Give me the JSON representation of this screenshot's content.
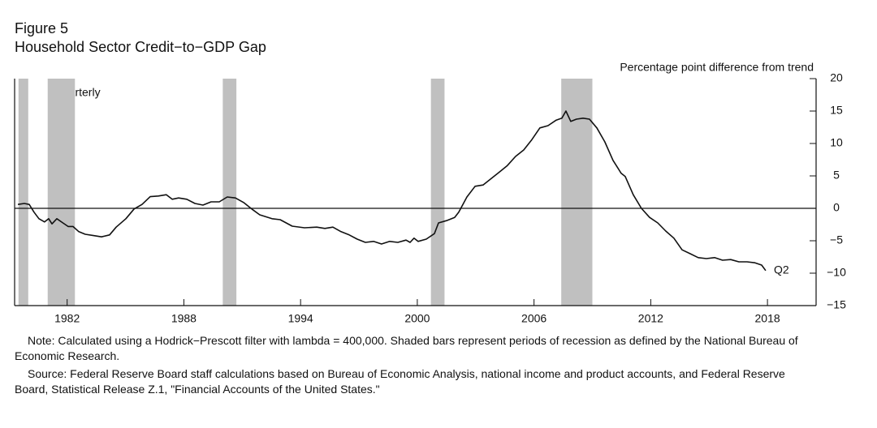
{
  "chart_data": {
    "type": "line",
    "figure_label": "Figure 5",
    "title": "Household Sector Credit−to−GDP Gap",
    "y_axis_label": "Percentage point difference from trend",
    "frequency_label": "Quarterly",
    "end_label": "Q2",
    "color": "#111111",
    "shade_color": "#c0c0c0",
    "zero_line": true,
    "xlim": [
      1979.8,
      2021.0
    ],
    "xticks": [
      {
        "value": 1982.5,
        "label": "1982"
      },
      {
        "value": 1988.5,
        "label": "1988"
      },
      {
        "value": 1994.5,
        "label": "1994"
      },
      {
        "value": 2000.5,
        "label": "2000"
      },
      {
        "value": 2006.5,
        "label": "2006"
      },
      {
        "value": 2012.5,
        "label": "2012"
      },
      {
        "value": 2018.5,
        "label": "2018"
      }
    ],
    "ylim": [
      -15,
      20
    ],
    "yticks": [
      20,
      15,
      10,
      5,
      0,
      {
        "value": -5,
        "label": "−5"
      },
      {
        "value": -10,
        "label": "−10"
      },
      {
        "value": -15,
        "label": "−15"
      }
    ],
    "shaded_periods": [
      [
        1980.0,
        1980.5
      ],
      [
        1981.5,
        1982.9
      ],
      [
        1990.5,
        1991.2
      ],
      [
        2001.2,
        2001.9
      ],
      [
        2007.9,
        2009.5
      ]
    ],
    "x": [
      1979.97,
      1980.3,
      1980.55,
      1980.8,
      1981.05,
      1981.34,
      1981.55,
      1981.72,
      1981.97,
      1982.26,
      1982.55,
      1982.8,
      1983.1,
      1983.43,
      1983.85,
      1984.27,
      1984.68,
      1985.02,
      1985.52,
      1985.94,
      1986.35,
      1986.77,
      1987.19,
      1987.6,
      1987.9,
      1988.23,
      1988.65,
      1989.07,
      1989.48,
      1989.9,
      1990.32,
      1990.73,
      1991.15,
      1991.57,
      1991.99,
      1992.4,
      1993.03,
      1993.45,
      1994.07,
      1994.7,
      1995.33,
      1995.75,
      1996.16,
      1996.58,
      1997.0,
      1997.41,
      1997.83,
      1998.25,
      1998.66,
      1999.08,
      1999.5,
      1999.92,
      2000.13,
      2000.33,
      2000.54,
      2000.96,
      2001.38,
      2001.59,
      2002.0,
      2002.42,
      2002.63,
      2003.05,
      2003.47,
      2003.88,
      2004.3,
      2004.72,
      2005.13,
      2005.55,
      2005.97,
      2006.39,
      2006.8,
      2007.22,
      2007.64,
      2007.93,
      2008.14,
      2008.39,
      2008.68,
      2009.02,
      2009.35,
      2009.73,
      2010.14,
      2010.56,
      2010.98,
      2011.19,
      2011.6,
      2012.02,
      2012.44,
      2012.86,
      2013.27,
      2013.69,
      2014.11,
      2014.53,
      2014.94,
      2015.36,
      2015.78,
      2016.19,
      2016.61,
      2017.03,
      2017.45,
      2017.86,
      2018.2,
      2018.41
    ],
    "values": [
      0.6,
      0.75,
      0.6,
      -0.6,
      -1.6,
      -2.1,
      -1.6,
      -2.4,
      -1.6,
      -2.2,
      -2.8,
      -2.8,
      -3.6,
      -4.0,
      -4.2,
      -4.4,
      -4.1,
      -2.9,
      -1.6,
      -0.1,
      0.6,
      1.8,
      1.9,
      2.1,
      1.4,
      1.6,
      1.4,
      0.75,
      0.5,
      1.0,
      1.0,
      1.75,
      1.6,
      0.9,
      -0.1,
      -1.0,
      -1.6,
      -1.75,
      -2.75,
      -3.0,
      -2.9,
      -3.1,
      -2.9,
      -3.6,
      -4.1,
      -4.75,
      -5.25,
      -5.1,
      -5.5,
      -5.1,
      -5.25,
      -4.9,
      -5.25,
      -4.6,
      -5.1,
      -4.75,
      -3.9,
      -2.25,
      -1.9,
      -1.4,
      -0.6,
      1.75,
      3.4,
      3.6,
      4.6,
      5.6,
      6.6,
      8.0,
      9.0,
      10.6,
      12.4,
      12.75,
      13.6,
      13.9,
      15.0,
      13.4,
      13.75,
      13.9,
      13.75,
      12.4,
      10.25,
      7.4,
      5.4,
      4.9,
      2.1,
      0.0,
      -1.4,
      -2.25,
      -3.5,
      -4.6,
      -6.4,
      -7.0,
      -7.6,
      -7.75,
      -7.6,
      -8.0,
      -7.9,
      -8.25,
      -8.25,
      -8.4,
      -8.75,
      -9.6
    ],
    "notes": [
      "Note: Calculated using a Hodrick−Prescott filter with lambda = 400,000. Shaded bars represent periods of recession as defined by the National Bureau of Economic Research.",
      "Source: Federal Reserve Board staff calculations based on Bureau of Economic Analysis, national income and product accounts, and Federal Reserve Board, Statistical Release Z.1, \"Financial Accounts of the United States.\""
    ]
  }
}
